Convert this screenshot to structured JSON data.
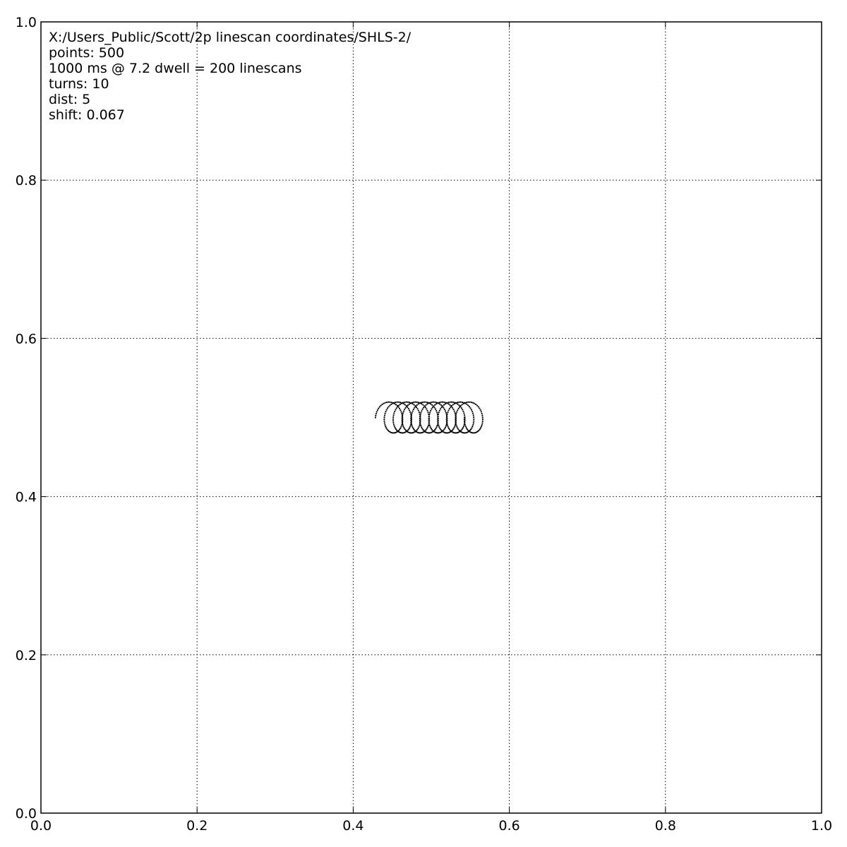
{
  "annotation": {
    "path_line": "X:/Users_Public/Scott/2p linescan coordinates/SHLS-2/",
    "points_line": "points: 500",
    "timing_line": "1000 ms @ 7.2 dwell =  200 linescans",
    "turns_line": "turns: 10",
    "dist_line": "dist: 5",
    "shift_line": "shift: 0.067"
  },
  "chart_data": {
    "type": "scatter",
    "title": "",
    "xlabel": "",
    "ylabel": "",
    "xlim": [
      0.0,
      1.0
    ],
    "ylim": [
      0.0,
      1.0
    ],
    "x_ticks": [
      0.0,
      0.2,
      0.4,
      0.6,
      0.8,
      1.0
    ],
    "y_ticks": [
      0.0,
      0.2,
      0.4,
      0.6,
      0.8,
      1.0
    ],
    "x_tick_labels": [
      "0.0",
      "0.2",
      "0.4",
      "0.6",
      "0.8",
      "1.0"
    ],
    "y_tick_labels": [
      "0.0",
      "0.2",
      "0.4",
      "0.6",
      "0.8",
      "1.0"
    ],
    "grid": true,
    "grid_style": "dotted",
    "marker_color": "#000000",
    "series": [
      {
        "shape": "spiral of overlapping circles",
        "points": 500,
        "turns": 10,
        "center_y": 0.5,
        "start_center_x": 0.443,
        "end_center_x": 0.557,
        "radius_x": 0.0145,
        "radius_y": 0.0195
      }
    ]
  }
}
